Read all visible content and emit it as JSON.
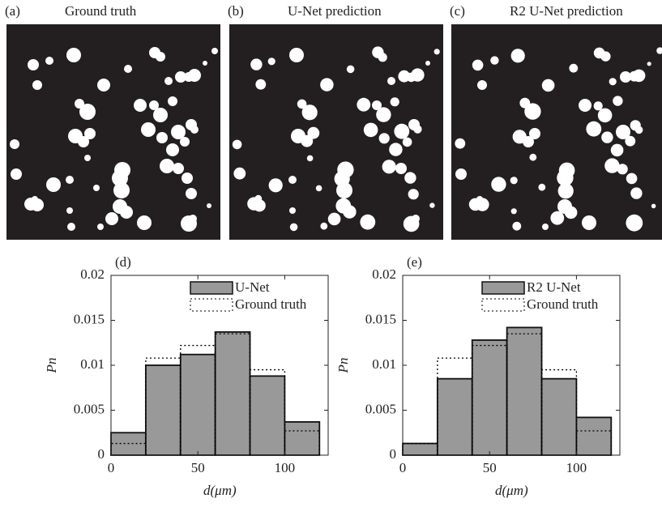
{
  "panels": [
    {
      "label": "(a)",
      "title": "Ground truth"
    },
    {
      "label": "(b)",
      "title": "U-Net prediction"
    },
    {
      "label": "(c)",
      "title": "R2 U-Net prediction"
    }
  ],
  "chart_data": [
    {
      "type": "histogram",
      "label": "(d)",
      "xlabel": "d(μm)",
      "ylabel": "Pn",
      "bins": [
        0,
        20,
        40,
        60,
        80,
        100,
        120
      ],
      "series": [
        {
          "name": "U-Net",
          "color": "#999999",
          "style": "solid",
          "values": [
            0.0025,
            0.01,
            0.0112,
            0.0137,
            0.0088,
            0.0037
          ]
        },
        {
          "name": "Ground truth",
          "color": "#000000",
          "style": "dotted",
          "values": [
            0.0013,
            0.0108,
            0.0122,
            0.0135,
            0.0095,
            0.0027
          ]
        }
      ],
      "xlim": [
        0,
        125
      ],
      "ylim": [
        0,
        0.02
      ],
      "xticks": [
        0,
        50,
        100
      ],
      "yticks": [
        0,
        0.005,
        0.01,
        0.015,
        0.02
      ],
      "legend": "upper right"
    },
    {
      "type": "histogram",
      "label": "(e)",
      "xlabel": "d(μm)",
      "ylabel": "Pn",
      "bins": [
        0,
        20,
        40,
        60,
        80,
        100,
        120
      ],
      "series": [
        {
          "name": "R2 U-Net",
          "color": "#999999",
          "style": "solid",
          "values": [
            0.0013,
            0.0085,
            0.0128,
            0.0142,
            0.0085,
            0.0042
          ]
        },
        {
          "name": "Ground truth",
          "color": "#000000",
          "style": "dotted",
          "values": [
            0.0013,
            0.0108,
            0.0122,
            0.0135,
            0.0095,
            0.0027
          ]
        }
      ],
      "xlim": [
        0,
        125
      ],
      "ylim": [
        0,
        0.02
      ],
      "xticks": [
        0,
        50,
        100
      ],
      "yticks": [
        0,
        0.005,
        0.01,
        0.015,
        0.02
      ],
      "legend": "upper right"
    }
  ]
}
